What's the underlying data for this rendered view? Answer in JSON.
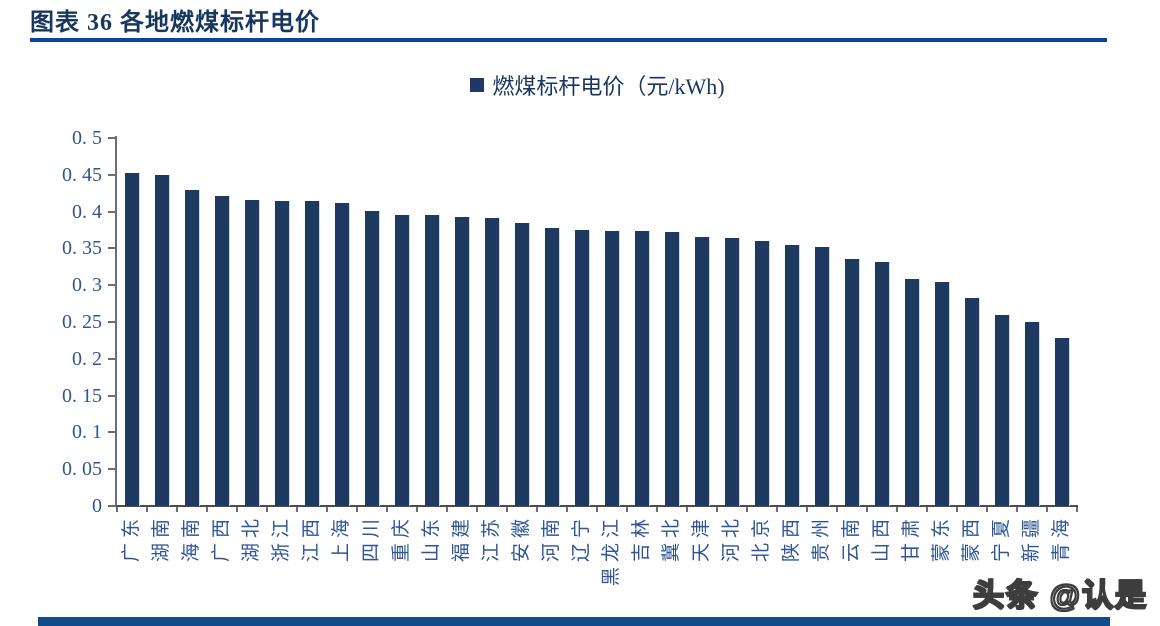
{
  "header": {
    "title": "图表 36 各地燃煤标杆电价"
  },
  "legend": {
    "label": "燃煤标杆电价（元/kWh)"
  },
  "chart_data": {
    "type": "bar",
    "title": "燃煤标杆电价（元/kWh)",
    "categories": [
      "广东",
      "湖南",
      "海南",
      "广西",
      "湖北",
      "浙江",
      "江西",
      "上海",
      "四川",
      "重庆",
      "山东",
      "福建",
      "江苏",
      "安徽",
      "河南",
      "辽宁",
      "黑龙江",
      "吉林",
      "冀北",
      "天津",
      "河北",
      "北京",
      "陕西",
      "贵州",
      "云南",
      "山西",
      "甘肃",
      "蒙东",
      "蒙西",
      "宁夏",
      "新疆",
      "青海"
    ],
    "values": [
      0.453,
      0.45,
      0.43,
      0.421,
      0.416,
      0.415,
      0.414,
      0.412,
      0.401,
      0.396,
      0.395,
      0.393,
      0.391,
      0.384,
      0.378,
      0.375,
      0.374,
      0.373,
      0.372,
      0.366,
      0.364,
      0.36,
      0.355,
      0.352,
      0.336,
      0.332,
      0.308,
      0.304,
      0.283,
      0.26,
      0.25,
      0.228
    ],
    "xlabel": "",
    "ylabel": "",
    "ylim": [
      0,
      0.5
    ],
    "ytick_values": [
      0,
      0.05,
      0.1,
      0.15,
      0.2,
      0.25,
      0.3,
      0.35,
      0.4,
      0.45,
      0.5
    ],
    "ytick_labels": [
      "0",
      "0. 05",
      "0. 1",
      "0. 15",
      "0. 2",
      "0. 25",
      "0. 3",
      "0. 35",
      "0. 4",
      "0. 45",
      "0. 5"
    ],
    "grid": false,
    "legend_position": "top-center",
    "bar_color": "#1F3A60",
    "axis_color": "#6e6e6e",
    "tick_label_color": "#2F5597"
  },
  "watermark": {
    "text": "头条 @认是"
  },
  "colors": {
    "title": "#17375E",
    "title_rule": "#0A4596",
    "bottom_bar": "#114B8B",
    "legend_swatch": "#1F3864"
  }
}
